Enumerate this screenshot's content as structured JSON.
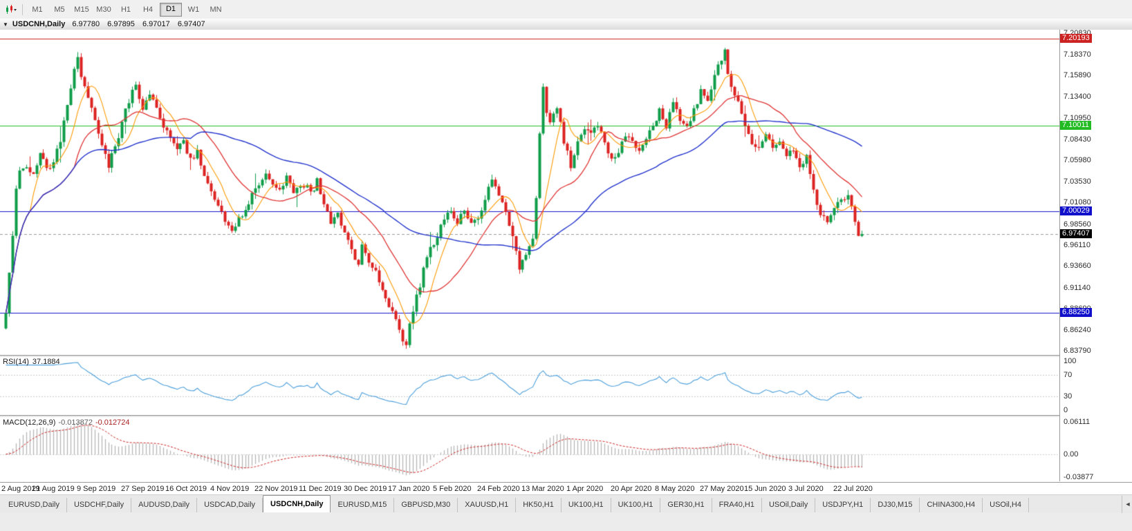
{
  "toolbar": {
    "timeframes": [
      "M1",
      "M5",
      "M15",
      "M30",
      "H1",
      "H4",
      "D1",
      "W1",
      "MN"
    ],
    "active_timeframe": "D1"
  },
  "icons": {
    "collapse": "▼",
    "tab_scroll_left": "◄"
  },
  "chart_title": {
    "symbol": "USDCNH,Daily",
    "open": "6.97780",
    "high": "6.97895",
    "low": "6.97017",
    "close": "6.97407"
  },
  "main_chart": {
    "axis_top": 7.2083,
    "axis_bottom": 6.8379,
    "price_axis": [
      "7.20830",
      "7.18370",
      "7.15890",
      "7.13400",
      "7.10950",
      "7.08430",
      "7.05980",
      "7.03530",
      "7.01080",
      "6.98560",
      "6.96110",
      "6.93660",
      "6.91140",
      "6.88690",
      "6.86240",
      "6.83790"
    ],
    "hlines": [
      {
        "price": 7.20193,
        "label": "7.20193",
        "color": "#cc2222"
      },
      {
        "price": 7.10011,
        "label": "7.10011",
        "color": "#22bb22"
      },
      {
        "price": 7.00029,
        "label": "7.00029",
        "color": "#1111cc"
      },
      {
        "price": 6.8825,
        "label": "6.88250",
        "color": "#1111cc"
      }
    ],
    "current_price": {
      "value": 6.97407,
      "label": "6.97407",
      "bg": "#000000"
    },
    "colors": {
      "up": "#0f9d4a",
      "down": "#dd2222",
      "ma_fast": "#ff9900",
      "ma_mid": "#e03232",
      "ma_slow": "#2233cc"
    },
    "ma_periods": {
      "fast": 8,
      "mid": 21,
      "slow": 55
    }
  },
  "chart_data": {
    "type": "candlestick",
    "symbol": "USDCNH",
    "timeframe": "Daily",
    "visible_range": {
      "first_date": "2 Aug 2019",
      "last_date": "22 Jul 2020",
      "price_high": 7.2083,
      "price_low": 6.8379
    },
    "num_candles": 251,
    "close_anchors": [
      [
        0,
        6.885
      ],
      [
        1,
        6.925
      ],
      [
        2,
        6.975
      ],
      [
        3,
        7.025
      ],
      [
        4,
        7.045
      ],
      [
        6,
        7.055
      ],
      [
        8,
        7.04
      ],
      [
        10,
        7.065
      ],
      [
        12,
        7.05
      ],
      [
        14,
        7.06
      ],
      [
        16,
        7.085
      ],
      [
        18,
        7.125
      ],
      [
        20,
        7.165
      ],
      [
        21,
        7.18
      ],
      [
        22,
        7.155
      ],
      [
        24,
        7.135
      ],
      [
        26,
        7.105
      ],
      [
        28,
        7.075
      ],
      [
        30,
        7.055
      ],
      [
        32,
        7.075
      ],
      [
        34,
        7.105
      ],
      [
        36,
        7.13
      ],
      [
        38,
        7.148
      ],
      [
        40,
        7.12
      ],
      [
        42,
        7.14
      ],
      [
        44,
        7.118
      ],
      [
        46,
        7.1
      ],
      [
        48,
        7.09
      ],
      [
        50,
        7.072
      ],
      [
        52,
        7.08
      ],
      [
        54,
        7.062
      ],
      [
        56,
        7.07
      ],
      [
        58,
        7.045
      ],
      [
        60,
        7.022
      ],
      [
        62,
        7.005
      ],
      [
        64,
        6.99
      ],
      [
        66,
        6.978
      ],
      [
        68,
        6.992
      ],
      [
        70,
        7.002
      ],
      [
        72,
        7.018
      ],
      [
        74,
        7.03
      ],
      [
        76,
        7.042
      ],
      [
        78,
        7.035
      ],
      [
        80,
        7.028
      ],
      [
        82,
        7.04
      ],
      [
        84,
        7.025
      ],
      [
        86,
        7.032
      ],
      [
        88,
        7.028
      ],
      [
        90,
        7.022
      ],
      [
        91,
        7.038
      ],
      [
        93,
        7.012
      ],
      [
        95,
        6.985
      ],
      [
        97,
        6.995
      ],
      [
        99,
        6.972
      ],
      [
        101,
        6.96
      ],
      [
        103,
        6.935
      ],
      [
        104,
        6.958
      ],
      [
        106,
        6.942
      ],
      [
        108,
        6.93
      ],
      [
        110,
        6.905
      ],
      [
        112,
        6.892
      ],
      [
        114,
        6.872
      ],
      [
        116,
        6.852
      ],
      [
        117,
        6.848
      ],
      [
        118,
        6.872
      ],
      [
        120,
        6.9
      ],
      [
        122,
        6.932
      ],
      [
        124,
        6.958
      ],
      [
        126,
        6.972
      ],
      [
        128,
        6.99
      ],
      [
        130,
        7.0
      ],
      [
        132,
        6.988
      ],
      [
        134,
        7.002
      ],
      [
        136,
        6.985
      ],
      [
        138,
        6.995
      ],
      [
        140,
        7.015
      ],
      [
        142,
        7.035
      ],
      [
        144,
        7.02
      ],
      [
        146,
        7.0
      ],
      [
        148,
        6.97
      ],
      [
        150,
        6.935
      ],
      [
        152,
        6.952
      ],
      [
        154,
        6.965
      ],
      [
        155,
        7.02
      ],
      [
        156,
        7.09
      ],
      [
        157,
        7.15
      ],
      [
        158,
        7.115
      ],
      [
        159,
        7.1
      ],
      [
        161,
        7.12
      ],
      [
        163,
        7.082
      ],
      [
        165,
        7.055
      ],
      [
        167,
        7.082
      ],
      [
        169,
        7.1
      ],
      [
        171,
        7.09
      ],
      [
        173,
        7.098
      ],
      [
        175,
        7.08
      ],
      [
        177,
        7.062
      ],
      [
        179,
        7.072
      ],
      [
        181,
        7.09
      ],
      [
        183,
        7.08
      ],
      [
        185,
        7.07
      ],
      [
        187,
        7.088
      ],
      [
        189,
        7.1
      ],
      [
        191,
        7.12
      ],
      [
        193,
        7.1
      ],
      [
        195,
        7.128
      ],
      [
        197,
        7.108
      ],
      [
        199,
        7.098
      ],
      [
        201,
        7.118
      ],
      [
        203,
        7.14
      ],
      [
        205,
        7.128
      ],
      [
        207,
        7.158
      ],
      [
        209,
        7.18
      ],
      [
        210,
        7.188
      ],
      [
        211,
        7.165
      ],
      [
        212,
        7.148
      ],
      [
        214,
        7.13
      ],
      [
        216,
        7.102
      ],
      [
        218,
        7.082
      ],
      [
        220,
        7.072
      ],
      [
        222,
        7.09
      ],
      [
        224,
        7.072
      ],
      [
        226,
        7.08
      ],
      [
        228,
        7.062
      ],
      [
        230,
        7.072
      ],
      [
        232,
        7.052
      ],
      [
        234,
        7.068
      ],
      [
        236,
        7.022
      ],
      [
        238,
        7.0
      ],
      [
        240,
        6.992
      ],
      [
        242,
        7.002
      ],
      [
        244,
        7.012
      ],
      [
        246,
        7.018
      ],
      [
        247,
        7.005
      ],
      [
        248,
        6.988
      ],
      [
        249,
        6.968
      ],
      [
        250,
        6.97407
      ]
    ],
    "noise": 0.0045,
    "wick": 0.006,
    "seed": 20200731
  },
  "rsi": {
    "label": "RSI(14)",
    "value": "37.1884",
    "period": 14,
    "levels": [
      100,
      70,
      30,
      0
    ],
    "color": "#4a9edb"
  },
  "macd": {
    "label": "MACD(12,26,9)",
    "value_main": "-0.013872",
    "value_signal": "-0.012724",
    "fast": 12,
    "slow": 26,
    "signal": 9,
    "axis_top_label": "0.06111",
    "axis_zero_label": "0.00",
    "axis_bottom_label": "-0.03877",
    "hist_color": "#b5b5b5",
    "signal_color": "#cc2222"
  },
  "date_axis": [
    "2 Aug 2019",
    "21 Aug 2019",
    "9 Sep 2019",
    "27 Sep 2019",
    "16 Oct 2019",
    "4 Nov 2019",
    "22 Nov 2019",
    "11 Dec 2019",
    "30 Dec 2019",
    "17 Jan 2020",
    "5 Feb 2020",
    "24 Feb 2020",
    "13 Mar 2020",
    "1 Apr 2020",
    "20 Apr 2020",
    "8 May 2020",
    "27 May 2020",
    "15 Jun 2020",
    "3 Jul 2020",
    "22 Jul 2020"
  ],
  "tabs": [
    "EURUSD,Daily",
    "USDCHF,Daily",
    "AUDUSD,Daily",
    "USDCAD,Daily",
    "USDCNH,Daily",
    "EURUSD,M15",
    "GBPUSD,M30",
    "XAUUSD,H1",
    "HK50,H1",
    "UK100,H1",
    "UK100,H1",
    "GER30,H1",
    "FRA40,H1",
    "USOil,Daily",
    "USDJPY,H1",
    "DJ30,M15",
    "CHINA300,H4",
    "USOil,H4"
  ],
  "active_tab": "USDCNH,Daily"
}
